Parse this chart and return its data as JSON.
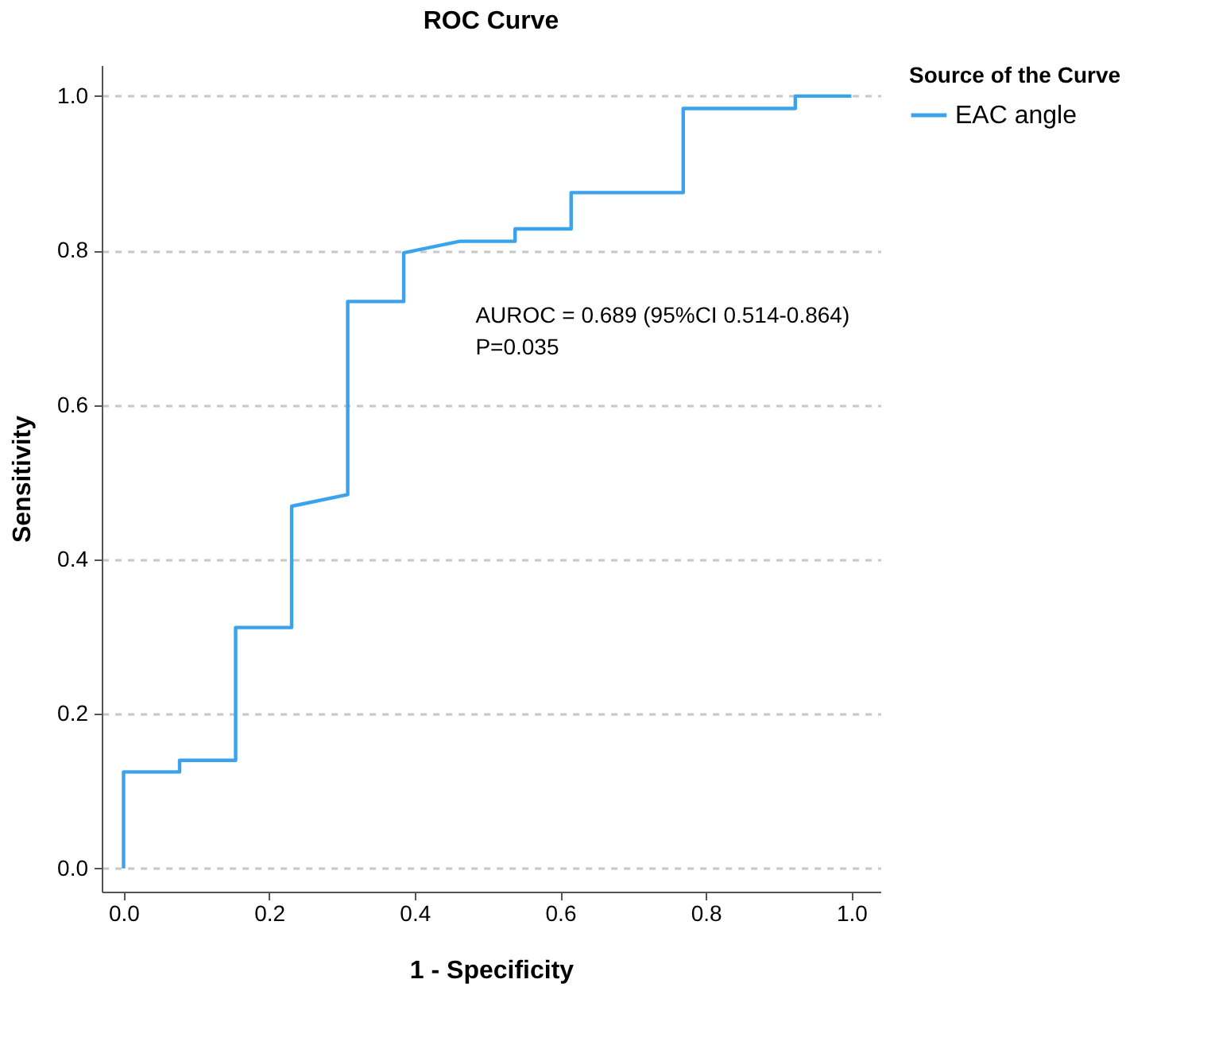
{
  "chart_data": {
    "type": "line",
    "title": "ROC Curve",
    "xlabel": "1 - Specificity",
    "ylabel": "Sensitivity",
    "legend_title": "Source of the Curve",
    "series": [
      {
        "name": "EAC angle",
        "color": "#3ba3ec",
        "x": [
          0,
          0,
          0.077,
          0.077,
          0.154,
          0.154,
          0.231,
          0.231,
          0.308,
          0.308,
          0.385,
          0.385,
          0.462,
          0.538,
          0.538,
          0.615,
          0.615,
          0.769,
          0.769,
          0.923,
          0.923,
          1
        ],
        "values": [
          0,
          0.125,
          0.125,
          0.14,
          0.14,
          0.312,
          0.312,
          0.469,
          0.484,
          0.734,
          0.734,
          0.797,
          0.812,
          0.812,
          0.828,
          0.828,
          0.875,
          0.875,
          0.984,
          0.984,
          1,
          1
        ]
      }
    ],
    "xlim": [
      -0.03,
      1.04
    ],
    "ylim": [
      -0.03,
      1.04
    ],
    "xticks": [
      {
        "value": 0,
        "label": "0.0"
      },
      0.2,
      0.4,
      0.6,
      0.8,
      {
        "value": 1,
        "label": "1.0"
      }
    ],
    "yticks": [
      {
        "value": 0,
        "label": "0.0"
      },
      0.2,
      0.4,
      0.6,
      0.8,
      {
        "value": 1,
        "label": "1.0"
      }
    ],
    "grid": "y",
    "legend": "right",
    "line_style": "solid",
    "marker": "none",
    "annotations": [
      "AUROC = 0.689 (95%CI 0.514-0.864)",
      "P=0.035"
    ]
  }
}
